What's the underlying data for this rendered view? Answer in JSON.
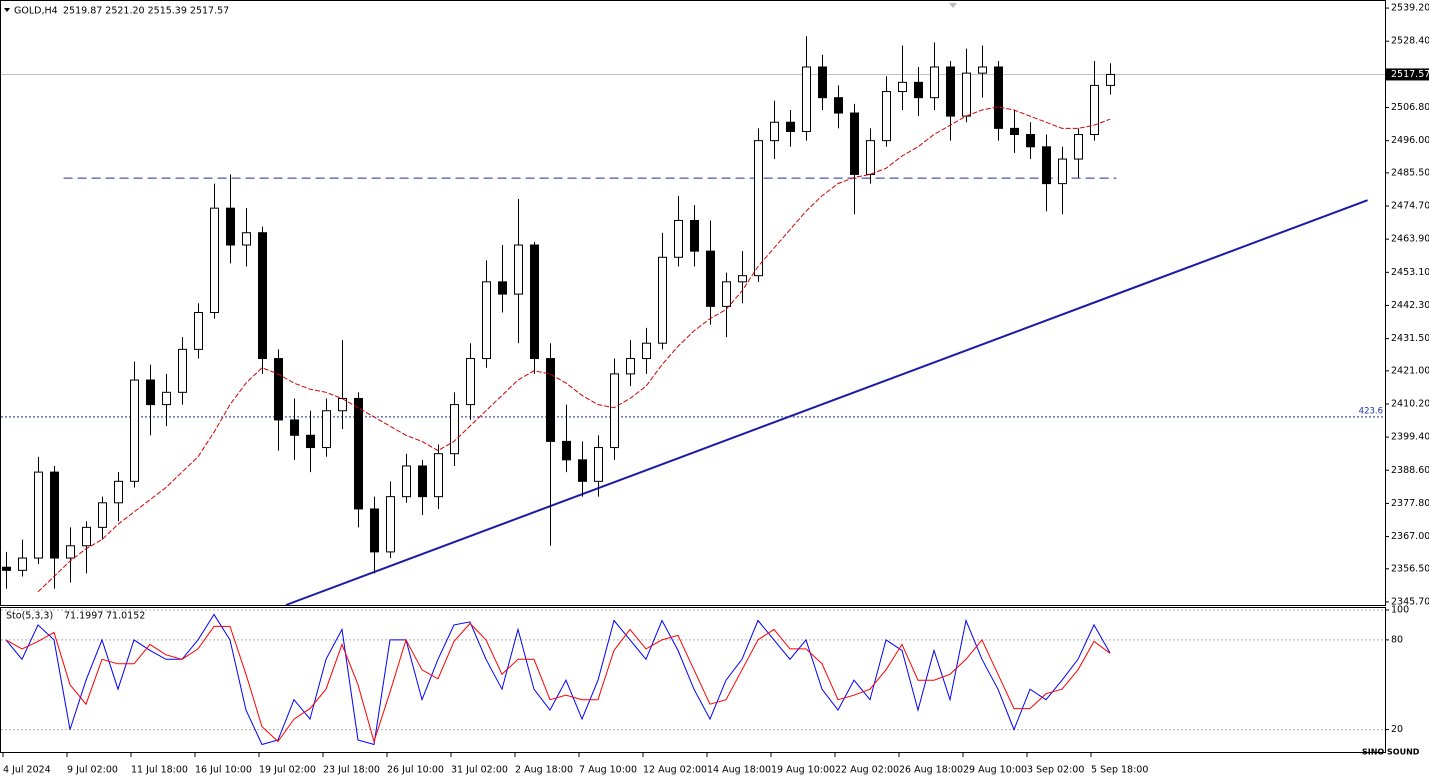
{
  "chart_data": [
    {
      "type": "candlestick",
      "title": "GOLD,H4",
      "ohlc_text": "2519.87 2521.20 2515.39 2517.57",
      "watermark": "SINO SOUND",
      "categories": [
        "4 Jul 2024",
        null,
        null,
        null,
        "9 Jul 02:00",
        null,
        null,
        null,
        "11 Jul 18:00",
        null,
        null,
        null,
        "16 Jul 10:00",
        null,
        null,
        null,
        "19 Jul 02:00",
        null,
        null,
        null,
        "23 Jul 18:00",
        null,
        null,
        null,
        "26 Jul 10:00",
        null,
        null,
        null,
        "31 Jul 02:00",
        null,
        null,
        null,
        "2 Aug 18:00",
        null,
        null,
        null,
        "7 Aug 10:00",
        null,
        null,
        null,
        "12 Aug 02:00",
        null,
        null,
        null,
        "14 Aug 18:00",
        null,
        null,
        null,
        "19 Aug 10:00",
        null,
        null,
        null,
        "22 Aug 02:00",
        null,
        null,
        null,
        "26 Aug 18:00",
        null,
        null,
        null,
        "29 Aug 10:00",
        null,
        null,
        null,
        "3 Sep 02:00",
        null,
        null,
        null,
        "5 Sep 18:00",
        null
      ],
      "open": [
        2357,
        2356,
        2360,
        2388,
        2360,
        2364,
        2370,
        2378,
        2385,
        2418,
        2410,
        2414,
        2428,
        2440,
        2474,
        2462,
        2466,
        2425,
        2405,
        2400,
        2396,
        2408,
        2412,
        2376,
        2362,
        2380,
        2390,
        2380,
        2394,
        2410,
        2425,
        2450,
        2446,
        2462,
        2425,
        2398,
        2392,
        2385,
        2396,
        2420,
        2425,
        2430,
        2458,
        2470,
        2460,
        2442,
        2450,
        2452,
        2496,
        2502,
        2499,
        2520,
        2510,
        2505,
        2485,
        2496,
        2512,
        2515,
        2510,
        2520,
        2504,
        2518,
        2520,
        2500,
        2498,
        2494,
        2482,
        2490,
        2498,
        2514
      ],
      "high": [
        2362,
        2366,
        2393,
        2390,
        2370,
        2372,
        2380,
        2388,
        2424,
        2423,
        2420,
        2432,
        2443,
        2482,
        2485,
        2474,
        2468,
        2428,
        2412,
        2408,
        2412,
        2431,
        2414,
        2380,
        2385,
        2394,
        2392,
        2397,
        2414,
        2430,
        2457,
        2462,
        2477,
        2463,
        2430,
        2410,
        2398,
        2400,
        2425,
        2431,
        2435,
        2466,
        2478,
        2475,
        2470,
        2453,
        2460,
        2500,
        2509,
        2506,
        2530,
        2524,
        2514,
        2508,
        2500,
        2517,
        2527,
        2520,
        2528,
        2522,
        2526,
        2527,
        2522,
        2506,
        2502,
        2498,
        2494,
        2500,
        2522,
        2521.2
      ],
      "low": [
        2350,
        2354,
        2358,
        2350,
        2352,
        2355,
        2366,
        2372,
        2383,
        2400,
        2403,
        2410,
        2425,
        2438,
        2456,
        2455,
        2420,
        2395,
        2392,
        2388,
        2393,
        2402,
        2370,
        2355,
        2360,
        2378,
        2374,
        2376,
        2390,
        2405,
        2422,
        2440,
        2430,
        2420,
        2364,
        2388,
        2380,
        2380,
        2392,
        2416,
        2420,
        2428,
        2455,
        2455,
        2436,
        2432,
        2443,
        2450,
        2490,
        2494,
        2496,
        2506,
        2500,
        2472,
        2482,
        2494,
        2506,
        2504,
        2506,
        2496,
        2502,
        2510,
        2496,
        2492,
        2490,
        2473,
        2472,
        2484,
        2496,
        2511
      ],
      "close": [
        2356,
        2360,
        2388,
        2360,
        2364,
        2370,
        2378,
        2385,
        2418,
        2410,
        2414,
        2428,
        2440,
        2474,
        2462,
        2466,
        2425,
        2405,
        2400,
        2396,
        2408,
        2412,
        2376,
        2362,
        2380,
        2390,
        2380,
        2394,
        2410,
        2425,
        2450,
        2446,
        2462,
        2425,
        2398,
        2392,
        2385,
        2396,
        2420,
        2425,
        2430,
        2458,
        2470,
        2460,
        2442,
        2450,
        2452,
        2496,
        2502,
        2499,
        2520,
        2510,
        2505,
        2485,
        2496,
        2512,
        2515,
        2510,
        2520,
        2504,
        2518,
        2520,
        2500,
        2498,
        2494,
        2482,
        2490,
        2498,
        2514,
        2517.57
      ],
      "moving_average": {
        "color": "#d00000",
        "values": [
          null,
          null,
          2349,
          2354,
          2359,
          2363,
          2366,
          2371,
          2375,
          2379,
          2383,
          2388,
          2393,
          2401,
          2410,
          2417,
          2422,
          2420,
          2417,
          2415,
          2414,
          2412,
          2409,
          2406,
          2403,
          2400,
          2398,
          2395,
          2398,
          2403,
          2408,
          2413,
          2418,
          2421,
          2420,
          2417,
          2413,
          2410,
          2409,
          2412,
          2416,
          2423,
          2429,
          2434,
          2438,
          2441,
          2447,
          2455,
          2461,
          2467,
          2473,
          2478,
          2482,
          2484,
          2485,
          2487,
          2491,
          2494,
          2498,
          2501,
          2504,
          2506,
          2507,
          2506,
          2504,
          2502,
          2500,
          2500,
          2501,
          2503
        ]
      },
      "ylim": [
        2344.7,
        2540.2
      ],
      "yticks": [
        {
          "value": 2345.7,
          "label": "2345.70"
        },
        {
          "value": 2356.5,
          "label": "2356.50"
        },
        {
          "value": 2367,
          "label": "2367.00"
        },
        {
          "value": 2377.8,
          "label": "2377.80"
        },
        {
          "value": 2388.6,
          "label": "2388.60"
        },
        {
          "value": 2399.4,
          "label": "2399.40"
        },
        {
          "value": 2410.2,
          "label": "2410.20"
        },
        {
          "value": 2421,
          "label": "2421.00"
        },
        {
          "value": 2431.5,
          "label": "2431.50"
        },
        {
          "value": 2442.3,
          "label": "2442.30"
        },
        {
          "value": 2453.1,
          "label": "2453.10"
        },
        {
          "value": 2463.9,
          "label": "2463.90"
        },
        {
          "value": 2474.7,
          "label": "2474.70"
        },
        {
          "value": 2485.5,
          "label": "2485.50"
        },
        {
          "value": 2496,
          "label": "2496.00"
        },
        {
          "value": 2506.8,
          "label": "2506.80"
        },
        {
          "value": 2528.4,
          "label": "2528.40"
        },
        {
          "value": 2539.2,
          "label": "2539.20"
        }
      ],
      "current_price": 2517.57,
      "hlines": [
        {
          "value": 2483.8,
          "x": [
            3.6,
            69.4
          ],
          "color": "#1f2fa0",
          "dash": "9,5"
        },
        {
          "value": 2406,
          "label": "423.6",
          "color": "#1f2fa0",
          "dash": "2,2"
        }
      ],
      "trendline": {
        "x": [
          17.5,
          85.1
        ],
        "y": [
          2344.7,
          2476.6
        ],
        "color": "#1a1aa8"
      },
      "grid": false
    },
    {
      "type": "line",
      "title": "Sto(5,3,3)",
      "series": [
        {
          "color": "#0000ff",
          "values": [
            80,
            67,
            90,
            80,
            20,
            53,
            80,
            47,
            80,
            73,
            67,
            67,
            80,
            97,
            80,
            33,
            10,
            13,
            40,
            27,
            67,
            87,
            13,
            10,
            80,
            80,
            40,
            67,
            90,
            92,
            67,
            47,
            87,
            47,
            33,
            53,
            27,
            53,
            93,
            80,
            67,
            93,
            73,
            47,
            27,
            53,
            67,
            93,
            80,
            67,
            80,
            47,
            33,
            53,
            40,
            80,
            73,
            33,
            73,
            40,
            93,
            67,
            47,
            20,
            47,
            40,
            53,
            67,
            90,
            71.1997
          ]
        },
        {
          "color": "#ff0000",
          "values": [
            80,
            74,
            79,
            85,
            50,
            37,
            67,
            64,
            64,
            77,
            70,
            67,
            74,
            89,
            89,
            57,
            22,
            12,
            27,
            34,
            47,
            77,
            50,
            12,
            45,
            80,
            60,
            54,
            79,
            91,
            80,
            57,
            67,
            67,
            40,
            43,
            40,
            40,
            73,
            87,
            74,
            80,
            83,
            60,
            37,
            40,
            60,
            80,
            87,
            74,
            74,
            64,
            40,
            43,
            47,
            60,
            77,
            53,
            53,
            57,
            67,
            80,
            57,
            34,
            34,
            44,
            47,
            60,
            79,
            71.0152
          ]
        }
      ],
      "ylim": [
        5,
        102
      ],
      "yticks": [
        20,
        80,
        100
      ],
      "grid": true
    }
  ]
}
